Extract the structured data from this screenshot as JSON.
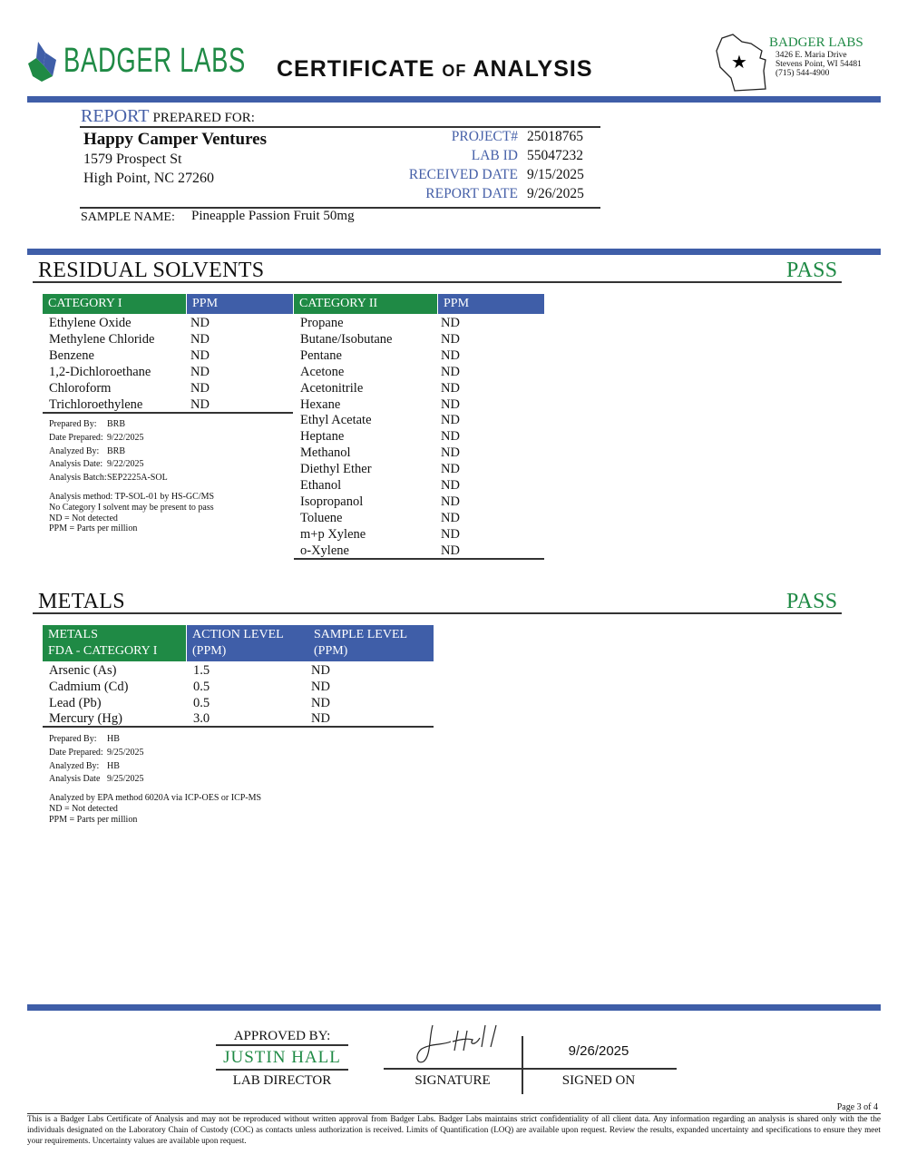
{
  "header": {
    "brand": "BADGER LABS",
    "title_a": "CERTIFICATE",
    "title_of": "OF",
    "title_b": "ANALYSIS",
    "lab": {
      "name": "BADGER LABS",
      "address1": "3426 E. Maria Drive",
      "address2": "Stevens Point, WI 54481",
      "phone": "(715) 544-4900"
    }
  },
  "colors": {
    "green": "#1f8a45",
    "blue": "#3f5ea8"
  },
  "report": {
    "label_a": "REPORT",
    "label_b": "PREPARED FOR:",
    "client": "Happy Camper Ventures",
    "address1": "1579 Prospect St",
    "address2": "High Point, NC 27260",
    "fields": [
      {
        "label": "PROJECT#",
        "value": "25018765"
      },
      {
        "label": "LAB ID",
        "value": "55047232"
      },
      {
        "label": "RECEIVED DATE",
        "value": "9/15/2025"
      },
      {
        "label": "REPORT DATE",
        "value": "9/26/2025"
      }
    ],
    "sample_label": "SAMPLE NAME:",
    "sample_name": "Pineapple Passion Fruit 50mg"
  },
  "solvents": {
    "title": "RESIDUAL SOLVENTS",
    "result": "PASS",
    "cat1_header": [
      "CATEGORY I",
      "PPM"
    ],
    "cat1": [
      [
        "Ethylene Oxide",
        "ND"
      ],
      [
        "Methylene Chloride",
        "ND"
      ],
      [
        "Benzene",
        "ND"
      ],
      [
        "1,2-Dichloroethane",
        "ND"
      ],
      [
        "Chloroform",
        "ND"
      ],
      [
        "Trichloroethylene",
        "ND"
      ]
    ],
    "cat2_header": [
      "CATEGORY II",
      "PPM"
    ],
    "cat2": [
      [
        "Propane",
        "ND"
      ],
      [
        "Butane/Isobutane",
        "ND"
      ],
      [
        "Pentane",
        "ND"
      ],
      [
        "Acetone",
        "ND"
      ],
      [
        "Acetonitrile",
        "ND"
      ],
      [
        "Hexane",
        "ND"
      ],
      [
        "Ethyl Acetate",
        "ND"
      ],
      [
        "Heptane",
        "ND"
      ],
      [
        "Methanol",
        "ND"
      ],
      [
        "Diethyl Ether",
        "ND"
      ],
      [
        "Ethanol",
        "ND"
      ],
      [
        "Isopropanol",
        "ND"
      ],
      [
        "Toluene",
        "ND"
      ],
      [
        "m+p Xylene",
        "ND"
      ],
      [
        "o-Xylene",
        "ND"
      ]
    ],
    "meta": [
      [
        "Prepared By:",
        "BRB"
      ],
      [
        "Date Prepared:",
        "9/22/2025"
      ],
      [
        "Analyzed By:",
        "BRB"
      ],
      [
        "Analysis Date:",
        "9/22/2025"
      ],
      [
        "Analysis Batch:",
        "SEP2225A-SOL"
      ]
    ],
    "notes": [
      "Analysis method: TP-SOL-01 by HS-GC/MS",
      "No Category I solvent may be present to pass",
      "ND = Not detected",
      "PPM = Parts per million"
    ]
  },
  "metals": {
    "title": "METALS",
    "result": "PASS",
    "header": [
      "METALS",
      "FDA - CATEGORY I",
      "ACTION LEVEL",
      "(PPM)",
      "SAMPLE LEVEL",
      "(PPM)"
    ],
    "rows": [
      [
        "Arsenic (As)",
        "1.5",
        "ND"
      ],
      [
        "Cadmium (Cd)",
        "0.5",
        "ND"
      ],
      [
        "Lead (Pb)",
        "0.5",
        "ND"
      ],
      [
        "Mercury (Hg)",
        "3.0",
        "ND"
      ]
    ],
    "meta": [
      [
        "Prepared By:",
        "HB"
      ],
      [
        "Date Prepared:",
        "9/25/2025"
      ],
      [
        "Analyzed By:",
        "HB"
      ],
      [
        "Analysis Date",
        "9/25/2025"
      ]
    ],
    "notes": [
      "Analyzed by EPA method 6020A via ICP-OES or ICP-MS",
      "ND = Not detected",
      "PPM = Parts per million"
    ]
  },
  "approval": {
    "approved_by": "APPROVED BY:",
    "name": "JUSTIN HALL",
    "role": "LAB DIRECTOR",
    "signature_label": "SIGNATURE",
    "signed_date": "9/26/2025",
    "signed_on_label": "SIGNED ON"
  },
  "footer": {
    "page": "Page 3 of 4",
    "disclaimer": "This is a Badger Labs Certificate of Analysis and may not be reproduced without written approval from Badger Labs. Badger Labs maintains strict confidentiality of all client data. Any information regarding an analysis is shared only with the the individuals designated on the Laboratory Chain of Custody (COC) as contacts unless authorization is received. Limits of Quantification (LOQ) are available upon request. Review the results, expanded uncertainty and specifications to ensure they meet your requirements. Uncertainty values are available upon request."
  }
}
